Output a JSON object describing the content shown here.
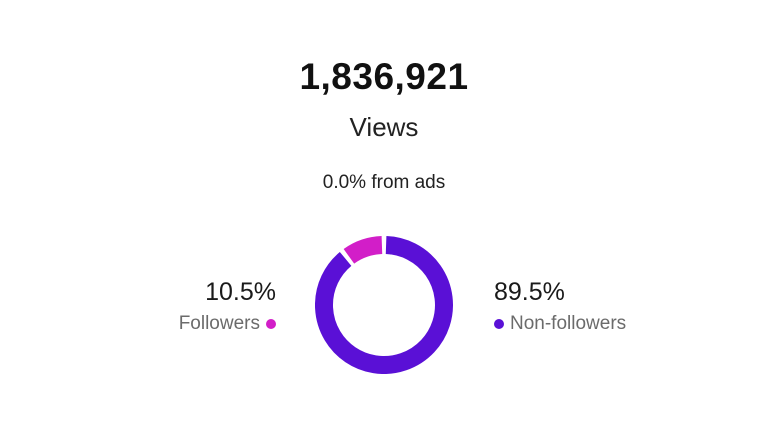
{
  "summary": {
    "total_views": "1,836,921",
    "metric_label": "Views",
    "ads_text": "0.0% from ads"
  },
  "breakdown": {
    "followers": {
      "percent_text": "10.5%",
      "label": "Followers",
      "value": 10.5,
      "color": "#d21ec8"
    },
    "non_followers": {
      "percent_text": "89.5%",
      "label": "Non-followers",
      "value": 89.5,
      "color": "#5a10d6"
    }
  }
}
